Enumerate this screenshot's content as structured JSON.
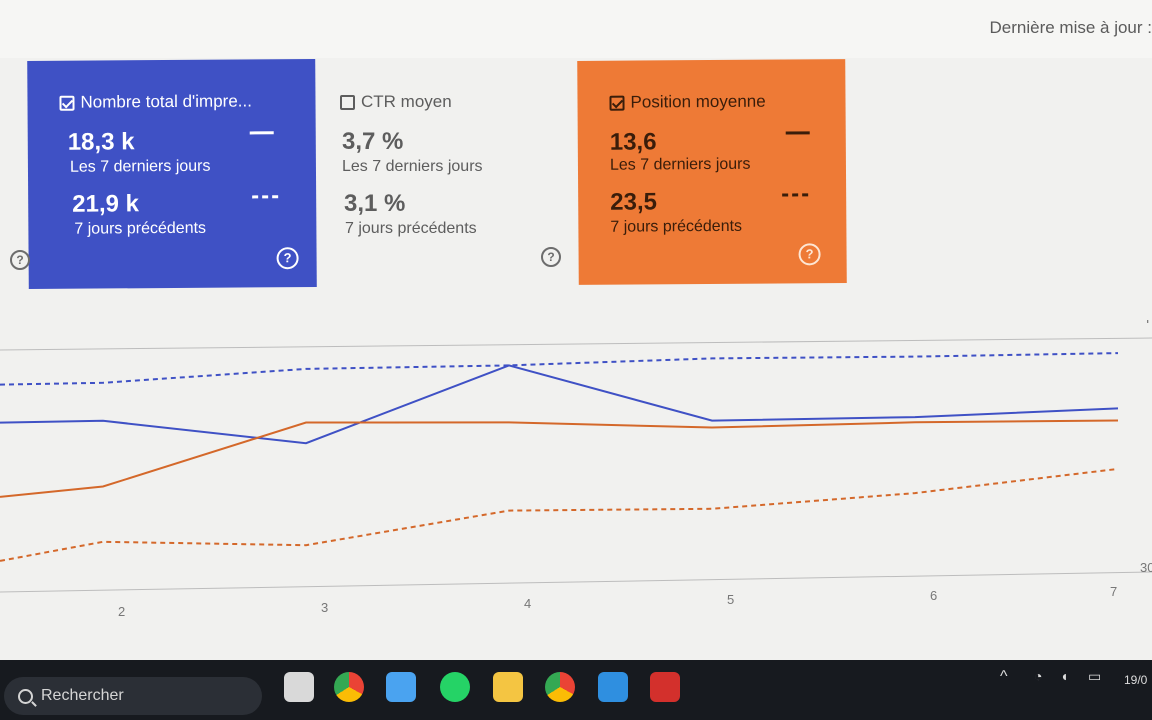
{
  "header": {
    "last_update_label": "Dernière mise à jour :"
  },
  "metrics": {
    "impressions": {
      "title": "Nombre total d'impre...",
      "checked": true,
      "current_value": "18,3 k",
      "current_label": "Les 7 derniers jours",
      "previous_value": "21,9 k",
      "previous_label": "7 jours précédents",
      "color": "#3f51c5"
    },
    "ctr": {
      "title": "CTR moyen",
      "checked": false,
      "current_value": "3,7 %",
      "current_label": "Les 7 derniers jours",
      "previous_value": "3,1 %",
      "previous_label": "7 jours précédents"
    },
    "position": {
      "title": "Position moyenne",
      "checked": true,
      "current_value": "13,6",
      "current_label": "Les 7 derniers jours",
      "previous_value": "23,5",
      "previous_label": "7 jours précédents",
      "color": "#ee7a36"
    },
    "help_glyph": "?"
  },
  "chart": {
    "x_ticks": [
      "2",
      "3",
      "4",
      "5",
      "6",
      "7"
    ],
    "right_edge_labels": [
      "P",
      "30"
    ],
    "series_colors": {
      "impressions": "#3f51c5",
      "position": "#d4682a"
    }
  },
  "chart_data": {
    "type": "line",
    "x": [
      1,
      2,
      3,
      4,
      5,
      6,
      7
    ],
    "series": [
      {
        "name": "Nombre total d'impre...",
        "period": "Les 7 derniers jours",
        "style": "solid",
        "color": "#3f51c5",
        "values": [
          0.58,
          0.58,
          0.43,
          0.86,
          0.52,
          0.52,
          0.55
        ]
      },
      {
        "name": "Nombre total d'impre...",
        "period": "7 jours précédents",
        "style": "dashed",
        "color": "#3f51c5",
        "values": [
          0.8,
          0.8,
          0.86,
          0.86,
          0.88,
          0.87,
          0.87
        ]
      },
      {
        "name": "Position moyenne",
        "period": "Les 7 derniers jours",
        "style": "solid",
        "color": "#d4682a",
        "values": [
          0.15,
          0.2,
          0.55,
          0.53,
          0.48,
          0.49,
          0.48
        ]
      },
      {
        "name": "Position moyenne",
        "period": "7 jours précédents",
        "style": "dashed",
        "color": "#d4682a",
        "values": [
          -0.22,
          -0.12,
          -0.16,
          0.02,
          0.01,
          0.08,
          0.2
        ]
      }
    ],
    "ylim": [
      -0.4,
      1.0
    ],
    "grid": false,
    "legend": "none"
  },
  "taskbar": {
    "search_placeholder": "Rechercher",
    "apps": [
      "task-view",
      "chrome",
      "microsoft-store",
      "whatsapp",
      "file-explorer",
      "chrome-profile",
      "vscode",
      "acrobat"
    ],
    "clock_text": "19/0"
  }
}
